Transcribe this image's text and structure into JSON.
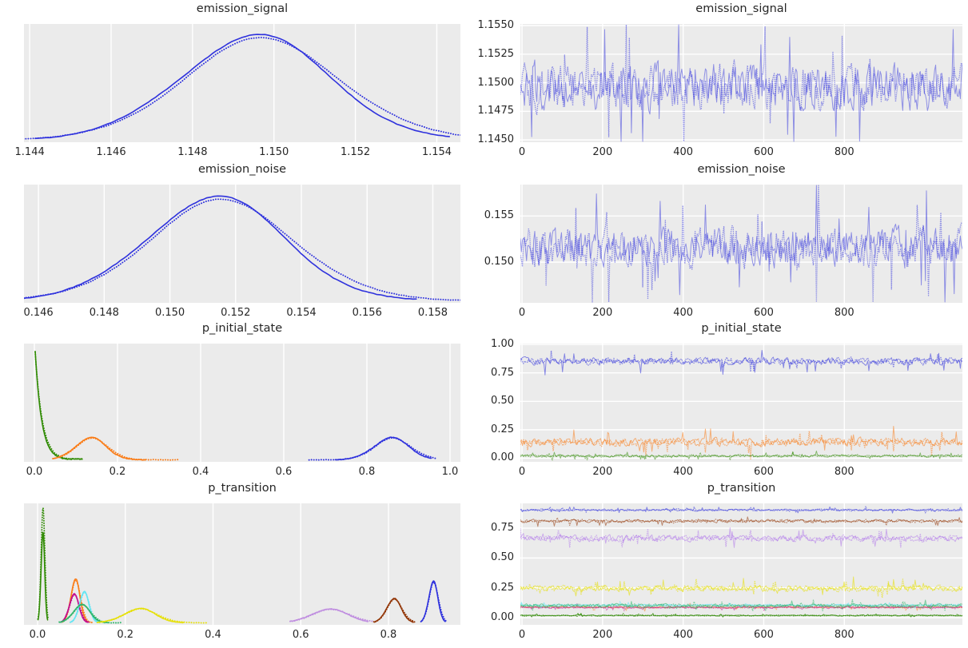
{
  "figure": {
    "background": "#ffffff",
    "plot_bg": "#ebebeb",
    "grid_color": "#ffffff",
    "text_color": "#262626"
  },
  "chart_data": [
    {
      "position": "row1-left",
      "type": "kde",
      "title": "emission_signal",
      "xlim": [
        1.14386,
        1.15458
      ],
      "xticks": {
        "values": [
          1.144,
          1.146,
          1.148,
          1.15,
          1.152,
          1.154
        ],
        "labels": [
          "1.144",
          "1.146",
          "1.148",
          "1.150",
          "1.152",
          "1.154"
        ]
      },
      "yticks": {
        "values": [],
        "labels": []
      },
      "grid": "vertical",
      "legend": "none",
      "series": [
        {
          "name": "emission_signal",
          "shape": "gauss",
          "color": "#2f32dd",
          "mean": 1.1495,
          "sd": 0.00185,
          "height": 0.94,
          "solid_extend": [
            2.9,
            2.6
          ],
          "dot_extend": [
            3.0,
            4.6
          ]
        }
      ]
    },
    {
      "position": "row1-right",
      "type": "trace",
      "title": "emission_signal",
      "xlim": [
        -4,
        1093
      ],
      "ylim": [
        1.1448,
        1.15514
      ],
      "xticks": {
        "values": [
          0,
          200,
          400,
          600,
          800
        ],
        "labels": [
          "0",
          "200",
          "400",
          "600",
          "800"
        ]
      },
      "yticks": {
        "values": [
          1.145,
          1.1475,
          1.15,
          1.1525,
          1.155
        ],
        "labels": [
          "1.1450",
          "1.1475",
          "1.1500",
          "1.1525",
          "1.1550"
        ]
      },
      "grid": "both",
      "legend": "none",
      "series": [
        {
          "name": "emission_signal",
          "color": "#2f32dd",
          "opacity": 0.5,
          "mean": 1.14965,
          "sd": 0.00165
        }
      ]
    },
    {
      "position": "row2-left",
      "type": "kde",
      "title": "emission_noise",
      "xlim": [
        0.14556,
        0.15884
      ],
      "xticks": {
        "values": [
          0.146,
          0.148,
          0.15,
          0.152,
          0.154,
          0.156,
          0.158
        ],
        "labels": [
          "0.146",
          "0.148",
          "0.150",
          "0.152",
          "0.154",
          "0.156",
          "0.158"
        ]
      },
      "yticks": {
        "values": [],
        "labels": []
      },
      "grid": "vertical",
      "legend": "none",
      "series": [
        {
          "name": "emission_noise",
          "shape": "gauss",
          "color": "#2f32dd",
          "mean": 0.15135,
          "sd": 0.00212,
          "height": 0.93,
          "solid_extend": [
            2.8,
            2.9
          ],
          "dot_extend": [
            2.9,
            3.4
          ]
        }
      ]
    },
    {
      "position": "row2-right",
      "type": "trace",
      "title": "emission_noise",
      "xlim": [
        -4,
        1093
      ],
      "ylim": [
        0.1456,
        0.1584
      ],
      "xticks": {
        "values": [
          0,
          200,
          400,
          600,
          800
        ],
        "labels": [
          "0",
          "200",
          "400",
          "600",
          "800"
        ]
      },
      "yticks": {
        "values": [
          0.15,
          0.155
        ],
        "labels": [
          "0.150",
          "0.155"
        ]
      },
      "grid": "both",
      "legend": "none",
      "series": [
        {
          "name": "emission_noise",
          "color": "#2f32dd",
          "opacity": 0.5,
          "mean": 0.1516,
          "sd": 0.00175
        }
      ]
    },
    {
      "position": "row3-left",
      "type": "kde",
      "title": "p_initial_state",
      "xlim": [
        -0.025,
        1.025
      ],
      "xticks": {
        "values": [
          0.0,
          0.2,
          0.4,
          0.6,
          0.8,
          1.0
        ],
        "labels": [
          "0.0",
          "0.2",
          "0.4",
          "0.6",
          "0.8",
          "1.0"
        ]
      },
      "yticks": {
        "values": [],
        "labels": []
      },
      "grid": "vertical",
      "legend": "none",
      "series": [
        {
          "name": "p_initial_state[1]",
          "shape": "decay",
          "color": "#328c06",
          "start": 0.002,
          "tau": 0.0155,
          "height": 0.985,
          "tail_to": 0.115
        },
        {
          "name": "p_initial_state[2]",
          "shape": "gauss",
          "color": "#fa7c17",
          "mean": 0.135,
          "sd": 0.037,
          "height": 0.2,
          "solid_extend": [
            2.4,
            3.6
          ],
          "dot_extend": [
            2.4,
            5.3
          ]
        },
        {
          "name": "p_initial_state[0]",
          "shape": "gauss",
          "color": "#2f32dd",
          "mean": 0.858,
          "sd": 0.042,
          "height": 0.2,
          "solid_extend": [
            3.2,
            2.3
          ],
          "dot_extend": [
            4.5,
            2.3
          ]
        }
      ]
    },
    {
      "position": "row3-right",
      "type": "trace",
      "title": "p_initial_state",
      "xlim": [
        -4,
        1093
      ],
      "ylim": [
        -0.032,
        1.008
      ],
      "xticks": {
        "values": [
          0,
          200,
          400,
          600,
          800
        ],
        "labels": [
          "0",
          "200",
          "400",
          "600",
          "800"
        ]
      },
      "yticks": {
        "values": [
          0.0,
          0.25,
          0.5,
          0.75,
          1.0
        ],
        "labels": [
          "0.00",
          "0.25",
          "0.50",
          "0.75",
          "1.00"
        ]
      },
      "grid": "both",
      "legend": "none",
      "series": [
        {
          "name": "p_initial_state[0]",
          "color": "#2f32dd",
          "opacity": 0.55,
          "mean": 0.852,
          "sd": 0.026
        },
        {
          "name": "p_initial_state[2]",
          "color": "#fa7c17",
          "opacity": 0.55,
          "mean": 0.142,
          "sd": 0.03
        },
        {
          "name": "p_initial_state[1]",
          "color": "#328c06",
          "opacity": 0.55,
          "mean": 0.02,
          "sd": 0.009
        }
      ]
    },
    {
      "position": "row4-left",
      "type": "kde",
      "title": "p_transition",
      "xlim": [
        -0.031,
        0.964
      ],
      "xticks": {
        "values": [
          0.0,
          0.2,
          0.4,
          0.6,
          0.8
        ],
        "labels": [
          "0.0",
          "0.2",
          "0.4",
          "0.6",
          "0.8"
        ]
      },
      "yticks": {
        "values": [],
        "labels": []
      },
      "grid": "vertical",
      "legend": "none",
      "series": [
        {
          "name": "p_transition[green]",
          "shape": "gauss",
          "color": "#328c06",
          "mean": 0.012,
          "sd": 0.0042,
          "height": 0.78,
          "dot_height": 0.97,
          "solid_extend": [
            2.6,
            2.6
          ],
          "dot_extend": [
            2.6,
            2.6
          ]
        },
        {
          "name": "p_transition[orange]",
          "shape": "gauss",
          "color": "#fa7c17",
          "mean": 0.086,
          "sd": 0.0105,
          "height": 0.38,
          "solid_extend": [
            2.8,
            2.8
          ],
          "dot_extend": [
            2.8,
            3.4
          ]
        },
        {
          "name": "p_transition[magenta]",
          "shape": "gauss",
          "color": "#c10c90",
          "mean": 0.083,
          "sd": 0.011,
          "height": 0.25,
          "solid_extend": [
            2.6,
            2.8
          ],
          "dot_extend": [
            2.6,
            2.8
          ]
        },
        {
          "name": "p_transition[cyan]",
          "shape": "gauss",
          "color": "#65e5f3",
          "mean": 0.106,
          "sd": 0.011,
          "height": 0.27,
          "solid_extend": [
            2.8,
            2.8
          ],
          "dot_extend": [
            2.8,
            3.2
          ]
        },
        {
          "name": "p_transition[seagreen]",
          "shape": "gauss",
          "color": "#2eb56a",
          "mean": 0.1,
          "sd": 0.019,
          "height": 0.16,
          "solid_extend": [
            2.6,
            3.2
          ],
          "dot_extend": [
            2.6,
            4.4
          ]
        },
        {
          "name": "p_transition[yellow]",
          "shape": "gauss",
          "color": "#e6e007",
          "mean": 0.232,
          "sd": 0.036,
          "height": 0.125,
          "solid_extend": [
            2.6,
            2.8
          ],
          "dot_extend": [
            2.6,
            3.9
          ]
        },
        {
          "name": "p_transition[violet]",
          "shape": "gauss",
          "color": "#c08fe0",
          "mean": 0.665,
          "sd": 0.042,
          "height": 0.12,
          "solid_extend": [
            2.1,
            2.1
          ],
          "dot_extend": [
            2.1,
            2.1
          ]
        },
        {
          "name": "p_transition[brown]",
          "shape": "gauss",
          "color": "#933708",
          "mean": 0.812,
          "sd": 0.017,
          "height": 0.21,
          "solid_extend": [
            2.6,
            2.6
          ],
          "dot_extend": [
            2.6,
            2.6
          ]
        },
        {
          "name": "p_transition[blue]",
          "shape": "gauss",
          "color": "#2f32dd",
          "mean": 0.902,
          "sd": 0.0105,
          "height": 0.36,
          "solid_extend": [
            2.6,
            2.6
          ],
          "dot_extend": [
            2.6,
            2.6
          ]
        }
      ]
    },
    {
      "position": "row4-right",
      "type": "trace",
      "title": "p_transition",
      "xlim": [
        -4,
        1093
      ],
      "ylim": [
        -0.06,
        0.958
      ],
      "xticks": {
        "values": [
          0,
          200,
          400,
          600,
          800
        ],
        "labels": [
          "0",
          "200",
          "400",
          "600",
          "800"
        ]
      },
      "yticks": {
        "values": [
          0.0,
          0.25,
          0.5,
          0.75
        ],
        "labels": [
          "0.00",
          "0.25",
          "0.50",
          "0.75"
        ]
      },
      "grid": "both",
      "legend": "none",
      "series": [
        {
          "name": "p_transition[blue]",
          "color": "#2f32dd",
          "opacity": 0.55,
          "mean": 0.902,
          "sd": 0.007
        },
        {
          "name": "p_transition[brown]",
          "color": "#933708",
          "opacity": 0.55,
          "mean": 0.81,
          "sd": 0.011
        },
        {
          "name": "p_transition[violet]",
          "color": "#a45dec",
          "opacity": 0.45,
          "mean": 0.665,
          "sd": 0.022
        },
        {
          "name": "p_transition[yellow]",
          "color": "#e6e007",
          "opacity": 0.6,
          "mean": 0.245,
          "sd": 0.021
        },
        {
          "name": "p_transition[orange]",
          "color": "#fa7c17",
          "opacity": 0.5,
          "mean": 0.088,
          "sd": 0.007
        },
        {
          "name": "p_transition[magenta]",
          "color": "#c10c90",
          "opacity": 0.5,
          "mean": 0.086,
          "sd": 0.007
        },
        {
          "name": "p_transition[cyan]",
          "color": "#65e5f3",
          "opacity": 0.6,
          "mean": 0.104,
          "sd": 0.007
        },
        {
          "name": "p_transition[seagreen]",
          "color": "#2eb56a",
          "opacity": 0.6,
          "mean": 0.1,
          "sd": 0.013
        },
        {
          "name": "p_transition[green]",
          "color": "#328c06",
          "opacity": 0.8,
          "mean": 0.018,
          "sd": 0.004
        }
      ]
    }
  ]
}
